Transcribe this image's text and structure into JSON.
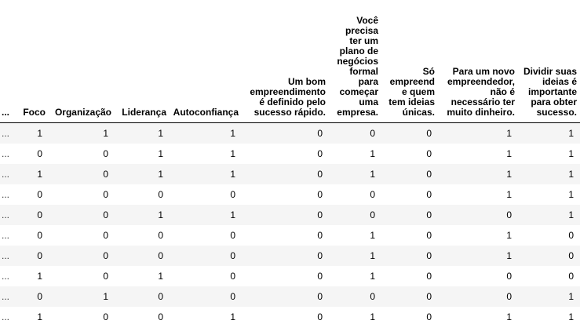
{
  "table": {
    "index_label": "...",
    "columns": [
      "Foco",
      "Organização",
      "Liderança",
      "Autoconfiança",
      "Um bom empreendimento é definido pelo sucesso rápido.",
      "Você precisa ter um plano de negócios formal para começar uma empresa.",
      "Só empreende quem tem ideias únicas.",
      "Para um novo empreendedor, não é necessário ter muito dinheiro.",
      "Dividir suas ideias é importante para obter sucesso."
    ],
    "rows": [
      {
        "index": "...",
        "cells": [
          "1",
          "1",
          "1",
          "1",
          "0",
          "0",
          "0",
          "1",
          "1"
        ]
      },
      {
        "index": "...",
        "cells": [
          "0",
          "0",
          "1",
          "1",
          "0",
          "1",
          "0",
          "1",
          "1"
        ]
      },
      {
        "index": "...",
        "cells": [
          "1",
          "0",
          "1",
          "1",
          "0",
          "1",
          "0",
          "1",
          "1"
        ]
      },
      {
        "index": "...",
        "cells": [
          "0",
          "0",
          "0",
          "0",
          "0",
          "0",
          "0",
          "1",
          "1"
        ]
      },
      {
        "index": "...",
        "cells": [
          "0",
          "0",
          "1",
          "1",
          "0",
          "0",
          "0",
          "0",
          "1"
        ]
      },
      {
        "index": "...",
        "cells": [
          "0",
          "0",
          "0",
          "0",
          "0",
          "1",
          "0",
          "1",
          "0"
        ]
      },
      {
        "index": "...",
        "cells": [
          "0",
          "0",
          "0",
          "0",
          "0",
          "1",
          "0",
          "1",
          "0"
        ]
      },
      {
        "index": "...",
        "cells": [
          "1",
          "0",
          "1",
          "0",
          "0",
          "1",
          "0",
          "0",
          "0"
        ]
      },
      {
        "index": "...",
        "cells": [
          "0",
          "1",
          "0",
          "0",
          "0",
          "0",
          "0",
          "0",
          "1"
        ]
      },
      {
        "index": "...",
        "cells": [
          "1",
          "0",
          "0",
          "1",
          "0",
          "1",
          "0",
          "1",
          "1"
        ]
      }
    ]
  }
}
